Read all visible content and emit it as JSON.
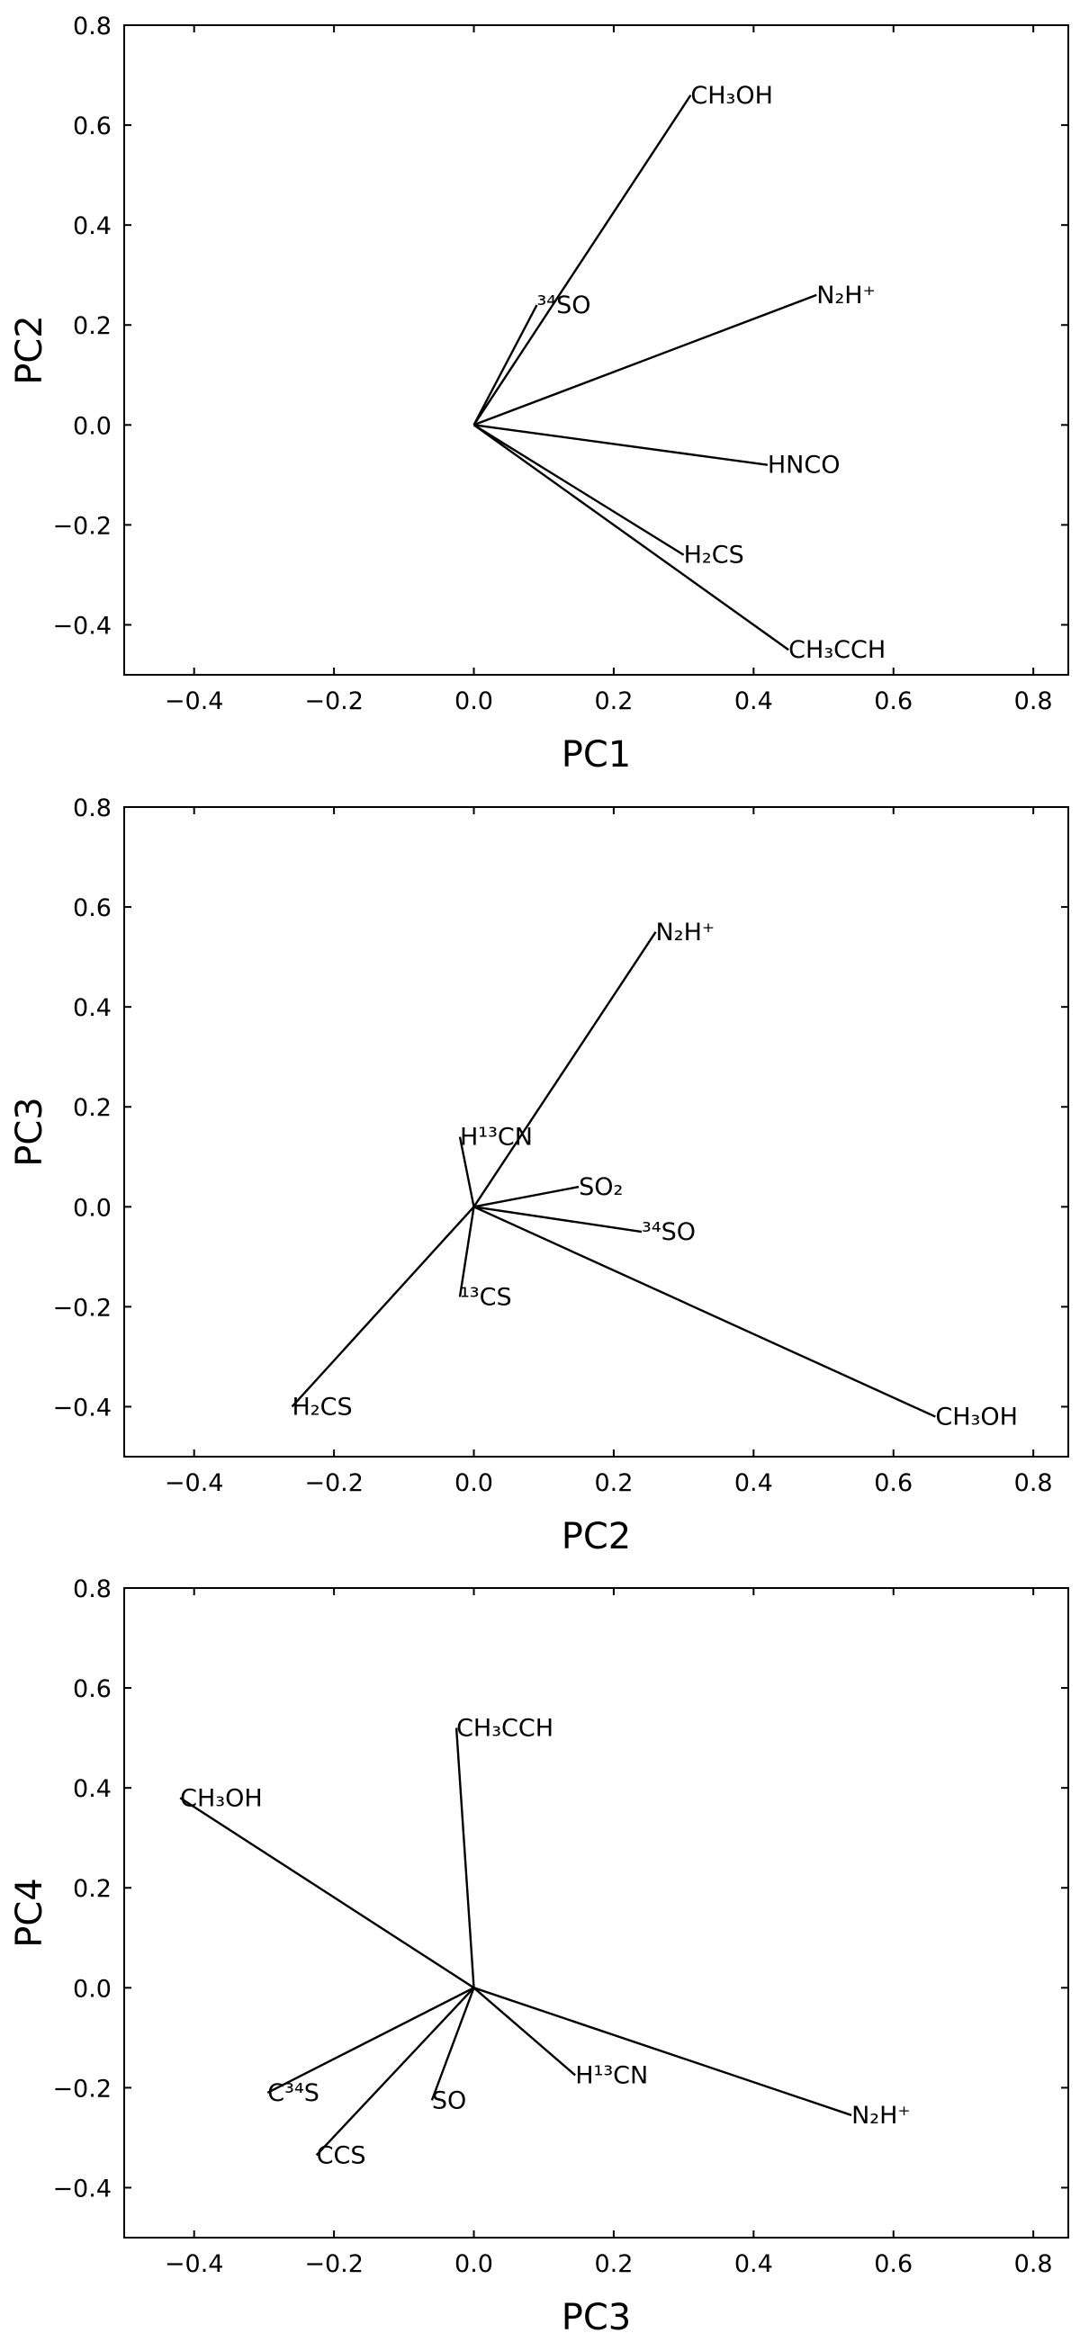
{
  "chart_data": [
    {
      "type": "biplot",
      "xlabel": "PC1",
      "ylabel": "PC2",
      "xlim": [
        -0.5,
        0.85
      ],
      "ylim": [
        -0.5,
        0.8
      ],
      "xticks": [
        -0.4,
        -0.2,
        0.0,
        0.2,
        0.4,
        0.6,
        0.8
      ],
      "yticks": [
        -0.4,
        -0.2,
        0.0,
        0.2,
        0.4,
        0.6,
        0.8
      ],
      "xtick_labels": [
        "−0.4",
        "−0.2",
        "0.0",
        "0.2",
        "0.4",
        "0.6",
        "0.8"
      ],
      "ytick_labels": [
        "−0.4",
        "−0.2",
        "0.0",
        "0.2",
        "0.4",
        "0.6",
        "0.8"
      ],
      "grid": false,
      "vectors": [
        {
          "label": "CH₃OH",
          "x": 0.31,
          "y": 0.66
        },
        {
          "label": "N₂H⁺",
          "x": 0.49,
          "y": 0.26
        },
        {
          "label": "³⁴SO",
          "x": 0.09,
          "y": 0.24
        },
        {
          "label": "HNCO",
          "x": 0.42,
          "y": -0.08
        },
        {
          "label": "H₂CS",
          "x": 0.3,
          "y": -0.26
        },
        {
          "label": "CH₃CCH",
          "x": 0.45,
          "y": -0.45
        }
      ]
    },
    {
      "type": "biplot",
      "xlabel": "PC2",
      "ylabel": "PC3",
      "xlim": [
        -0.5,
        0.85
      ],
      "ylim": [
        -0.5,
        0.8
      ],
      "xticks": [
        -0.4,
        -0.2,
        0.0,
        0.2,
        0.4,
        0.6,
        0.8
      ],
      "yticks": [
        -0.4,
        -0.2,
        0.0,
        0.2,
        0.4,
        0.6,
        0.8
      ],
      "xtick_labels": [
        "−0.4",
        "−0.2",
        "0.0",
        "0.2",
        "0.4",
        "0.6",
        "0.8"
      ],
      "ytick_labels": [
        "−0.4",
        "−0.2",
        "0.0",
        "0.2",
        "0.4",
        "0.6",
        "0.8"
      ],
      "grid": false,
      "vectors": [
        {
          "label": "N₂H⁺",
          "x": 0.26,
          "y": 0.55
        },
        {
          "label": "H¹³CN",
          "x": -0.02,
          "y": 0.14
        },
        {
          "label": "SO₂",
          "x": 0.15,
          "y": 0.04
        },
        {
          "label": "³⁴SO",
          "x": 0.24,
          "y": -0.05
        },
        {
          "label": "¹³CS",
          "x": -0.02,
          "y": -0.18
        },
        {
          "label": "H₂CS",
          "x": -0.26,
          "y": -0.4
        },
        {
          "label": "CH₃OH",
          "x": 0.66,
          "y": -0.42
        }
      ]
    },
    {
      "type": "biplot",
      "xlabel": "PC3",
      "ylabel": "PC4",
      "xlim": [
        -0.5,
        0.85
      ],
      "ylim": [
        -0.5,
        0.8
      ],
      "xticks": [
        -0.4,
        -0.2,
        0.0,
        0.2,
        0.4,
        0.6,
        0.8
      ],
      "yticks": [
        -0.4,
        -0.2,
        0.0,
        0.2,
        0.4,
        0.6,
        0.8
      ],
      "xtick_labels": [
        "−0.4",
        "−0.2",
        "0.0",
        "0.2",
        "0.4",
        "0.6",
        "0.8"
      ],
      "ytick_labels": [
        "−0.4",
        "−0.2",
        "0.0",
        "0.2",
        "0.4",
        "0.6",
        "0.8"
      ],
      "grid": false,
      "vectors": [
        {
          "label": "CH₃CCH",
          "x": -0.025,
          "y": 0.52
        },
        {
          "label": "CH₃OH",
          "x": -0.42,
          "y": 0.38
        },
        {
          "label": "H¹³CN",
          "x": 0.145,
          "y": -0.175
        },
        {
          "label": "N₂H⁺",
          "x": 0.54,
          "y": -0.255
        },
        {
          "label": "C³⁴S",
          "x": -0.295,
          "y": -0.21
        },
        {
          "label": "SO",
          "x": -0.06,
          "y": -0.225
        },
        {
          "label": "CCS",
          "x": -0.225,
          "y": -0.335
        }
      ]
    }
  ]
}
